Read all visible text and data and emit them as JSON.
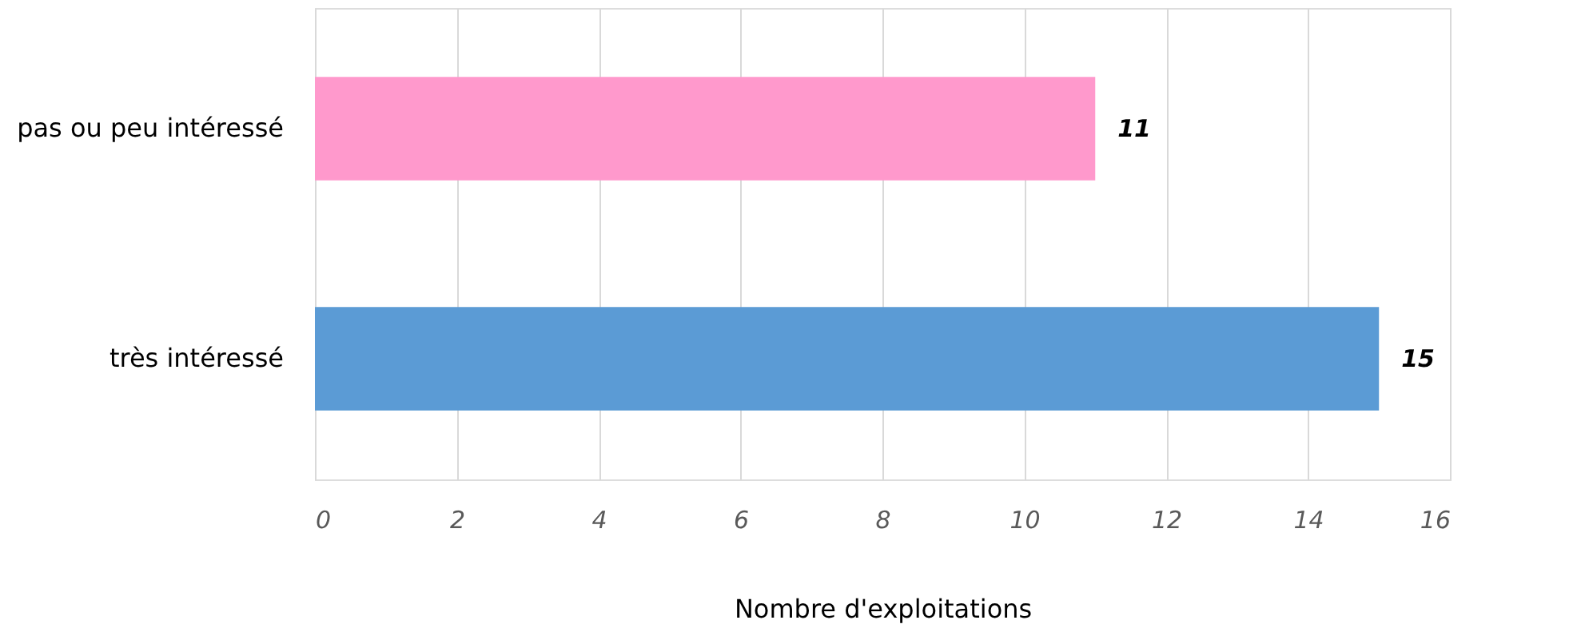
{
  "chart_data": {
    "type": "bar",
    "orientation": "horizontal",
    "xlabel": "Nombre d'exploitations",
    "categories": [
      "pas ou peu intéressé",
      "très intéressé"
    ],
    "values": [
      11,
      15
    ],
    "colors": [
      "#ff99cc",
      "#5b9bd5"
    ],
    "xlim": [
      0,
      16
    ],
    "xticks": [
      0,
      2,
      4,
      6,
      8,
      10,
      12,
      14,
      16
    ],
    "grid": "x",
    "data_labels": true
  }
}
